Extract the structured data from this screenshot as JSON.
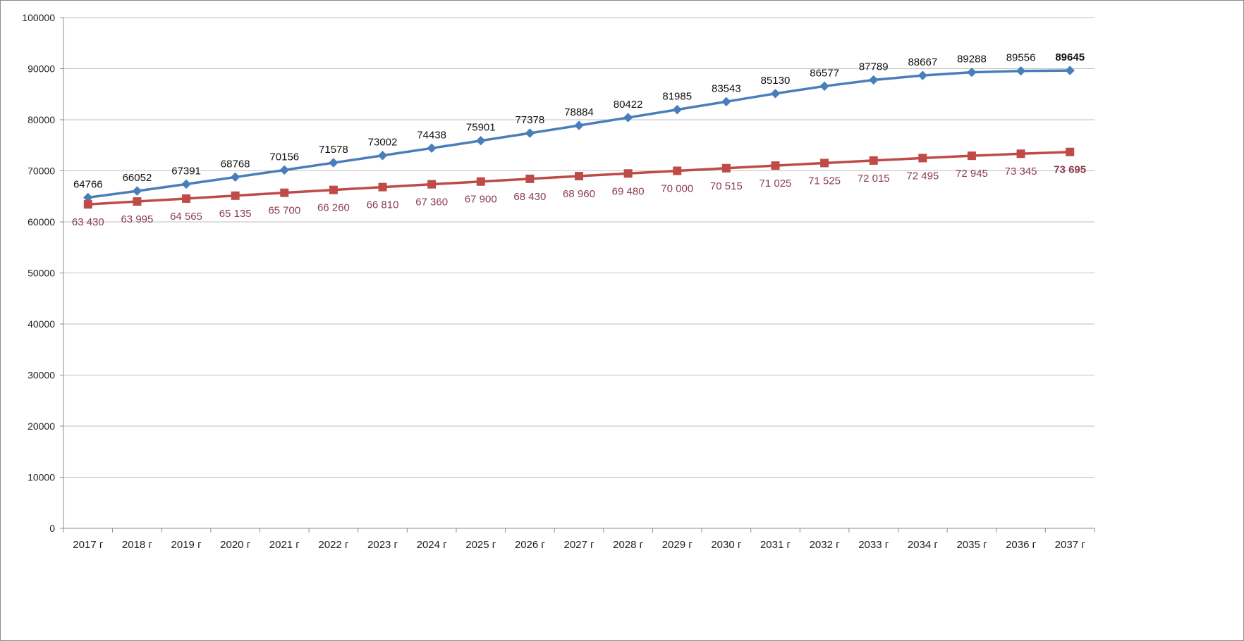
{
  "chart_data": {
    "type": "line",
    "title": "",
    "xlabel": "",
    "ylabel": "",
    "ylim": [
      0,
      100000
    ],
    "ytick_step": 10000,
    "yticks": [
      "0",
      "10000",
      "20000",
      "30000",
      "40000",
      "50000",
      "60000",
      "70000",
      "80000",
      "90000",
      "100000"
    ],
    "grid": "horizontal",
    "legend": "none",
    "categories": [
      "2017 г",
      "2018 г",
      "2019 г",
      "2020 г",
      "2021 г",
      "2022 г",
      "2023 г",
      "2024 г",
      "2025 г",
      "2026 г",
      "2027 г",
      "2028 г",
      "2029 г",
      "2030 г",
      "2031 г",
      "2032 г",
      "2033 г",
      "2034 г",
      "2035 г",
      "2036 г",
      "2037 г"
    ],
    "series": [
      {
        "color": "#4a7ebb",
        "marker": "diamond",
        "values": [
          64766,
          66052,
          67391,
          68768,
          70156,
          71578,
          73002,
          74438,
          75901,
          77378,
          78884,
          80422,
          81985,
          83543,
          85130,
          86577,
          87789,
          88667,
          89288,
          89556,
          89645
        ],
        "labels": [
          "64766",
          "66052",
          "67391",
          "68768",
          "70156",
          "71578",
          "73002",
          "74438",
          "75901",
          "77378",
          "78884",
          "80422",
          "81985",
          "83543",
          "85130",
          "86577",
          "87789",
          "88667",
          "89288",
          "89556",
          "89645"
        ],
        "label_position": "above",
        "label_color": "#111111"
      },
      {
        "color": "#be4b48",
        "marker": "square",
        "values": [
          63430,
          63995,
          64565,
          65135,
          65700,
          66260,
          66810,
          67360,
          67900,
          68430,
          68960,
          69480,
          70000,
          70515,
          71025,
          71525,
          72015,
          72495,
          72945,
          73345,
          73695
        ],
        "labels": [
          "63 430",
          "63 995",
          "64 565",
          "65 135",
          "65 700",
          "66 260",
          "66 810",
          "67 360",
          "67 900",
          "68 430",
          "68 960",
          "69 480",
          "70 000",
          "70 515",
          "71 025",
          "71 525",
          "72 015",
          "72 495",
          "72 945",
          "73 345",
          "73 695"
        ],
        "label_position": "below",
        "label_color": "#8b3b4e"
      }
    ]
  }
}
